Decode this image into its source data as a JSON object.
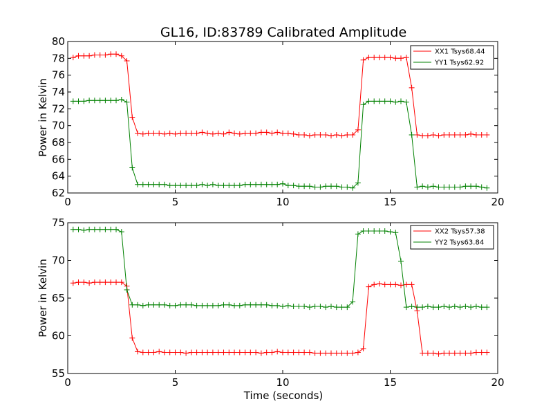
{
  "chart_data": [
    {
      "type": "line",
      "title": "GL16, ID:83789 Calibrated Amplitude",
      "xlabel": "",
      "ylabel": "Power in Kelvin",
      "xlim": [
        0,
        20
      ],
      "ylim": [
        62,
        80
      ],
      "xticks": [
        0,
        5,
        10,
        15,
        20
      ],
      "yticks": [
        62,
        64,
        66,
        68,
        70,
        72,
        74,
        76,
        78,
        80
      ],
      "grid": false,
      "legend_position": "top-right",
      "marker": "+",
      "x": [
        0.25,
        0.5,
        0.75,
        1.0,
        1.25,
        1.5,
        1.75,
        2.0,
        2.25,
        2.5,
        2.75,
        3.0,
        3.25,
        3.5,
        3.75,
        4.0,
        4.25,
        4.5,
        4.75,
        5.0,
        5.25,
        5.5,
        5.75,
        6.0,
        6.25,
        6.5,
        6.75,
        7.0,
        7.25,
        7.5,
        7.75,
        8.0,
        8.25,
        8.5,
        8.75,
        9.0,
        9.25,
        9.5,
        9.75,
        10.0,
        10.25,
        10.5,
        10.75,
        11.0,
        11.25,
        11.5,
        11.75,
        12.0,
        12.25,
        12.5,
        12.75,
        13.0,
        13.25,
        13.5,
        13.75,
        14.0,
        14.25,
        14.5,
        14.75,
        15.0,
        15.25,
        15.5,
        15.75,
        16.0,
        16.25,
        16.5,
        16.75,
        17.0,
        17.25,
        17.5,
        17.75,
        18.0,
        18.25,
        18.5,
        18.75,
        19.0,
        19.25,
        19.5
      ],
      "series": [
        {
          "name": "XX1 Tsys68.44",
          "color": "#ff0000",
          "values": [
            78.1,
            78.3,
            78.3,
            78.3,
            78.4,
            78.4,
            78.4,
            78.5,
            78.5,
            78.3,
            77.7,
            71.0,
            69.1,
            69.0,
            69.1,
            69.1,
            69.1,
            69.0,
            69.1,
            69.0,
            69.1,
            69.1,
            69.1,
            69.1,
            69.2,
            69.1,
            69.0,
            69.1,
            69.0,
            69.2,
            69.1,
            69.0,
            69.1,
            69.1,
            69.1,
            69.2,
            69.2,
            69.1,
            69.2,
            69.1,
            69.1,
            69.0,
            68.9,
            68.9,
            68.8,
            68.9,
            68.9,
            68.9,
            68.8,
            68.9,
            68.8,
            68.9,
            68.9,
            69.5,
            77.8,
            78.1,
            78.1,
            78.1,
            78.1,
            78.1,
            78.0,
            78.0,
            78.1,
            74.5,
            68.9,
            68.8,
            68.8,
            68.9,
            68.8,
            68.9,
            68.9,
            68.9,
            68.9,
            68.9,
            69.0,
            68.9,
            68.9,
            68.9
          ]
        },
        {
          "name": "YY1 Tsys62.92",
          "color": "#008000",
          "values": [
            72.9,
            72.9,
            72.9,
            73.0,
            73.0,
            73.0,
            73.0,
            73.0,
            73.0,
            73.1,
            72.8,
            65.0,
            63.0,
            63.0,
            63.0,
            63.0,
            63.0,
            63.0,
            62.9,
            62.9,
            62.9,
            62.9,
            62.9,
            62.9,
            63.0,
            62.9,
            63.0,
            62.9,
            62.9,
            62.9,
            62.9,
            62.9,
            63.0,
            63.0,
            63.0,
            63.0,
            63.0,
            63.0,
            63.0,
            63.1,
            62.9,
            62.9,
            62.8,
            62.8,
            62.8,
            62.7,
            62.7,
            62.8,
            62.8,
            62.8,
            62.7,
            62.7,
            62.6,
            63.2,
            72.5,
            72.9,
            72.9,
            72.9,
            72.9,
            72.9,
            72.8,
            72.9,
            72.8,
            68.9,
            62.7,
            62.8,
            62.7,
            62.8,
            62.7,
            62.7,
            62.7,
            62.7,
            62.7,
            62.8,
            62.8,
            62.8,
            62.7,
            62.6
          ]
        }
      ]
    },
    {
      "type": "line",
      "title": "",
      "xlabel": "Time (seconds)",
      "ylabel": "Power in Kelvin",
      "xlim": [
        0,
        20
      ],
      "ylim": [
        55,
        75
      ],
      "xticks": [
        0,
        5,
        10,
        15,
        20
      ],
      "yticks": [
        55,
        60,
        65,
        70,
        75
      ],
      "grid": false,
      "legend_position": "top-right",
      "marker": "+",
      "x": [
        0.25,
        0.5,
        0.75,
        1.0,
        1.25,
        1.5,
        1.75,
        2.0,
        2.25,
        2.5,
        2.75,
        3.0,
        3.25,
        3.5,
        3.75,
        4.0,
        4.25,
        4.5,
        4.75,
        5.0,
        5.25,
        5.5,
        5.75,
        6.0,
        6.25,
        6.5,
        6.75,
        7.0,
        7.25,
        7.5,
        7.75,
        8.0,
        8.25,
        8.5,
        8.75,
        9.0,
        9.25,
        9.5,
        9.75,
        10.0,
        10.25,
        10.5,
        10.75,
        11.0,
        11.25,
        11.5,
        11.75,
        12.0,
        12.25,
        12.5,
        12.75,
        13.0,
        13.25,
        13.5,
        13.75,
        14.0,
        14.25,
        14.5,
        14.75,
        15.0,
        15.25,
        15.5,
        15.75,
        16.0,
        16.25,
        16.5,
        16.75,
        17.0,
        17.25,
        17.5,
        17.75,
        18.0,
        18.25,
        18.5,
        18.75,
        19.0,
        19.25,
        19.5
      ],
      "series": [
        {
          "name": "XX2 Tsys57.38",
          "color": "#ff0000",
          "values": [
            67.0,
            67.1,
            67.1,
            67.0,
            67.1,
            67.1,
            67.1,
            67.1,
            67.1,
            67.1,
            66.6,
            59.7,
            57.9,
            57.8,
            57.8,
            57.8,
            57.9,
            57.8,
            57.8,
            57.8,
            57.8,
            57.7,
            57.8,
            57.8,
            57.8,
            57.8,
            57.8,
            57.8,
            57.8,
            57.8,
            57.8,
            57.8,
            57.8,
            57.8,
            57.8,
            57.7,
            57.8,
            57.8,
            57.9,
            57.8,
            57.8,
            57.8,
            57.8,
            57.8,
            57.8,
            57.7,
            57.7,
            57.7,
            57.7,
            57.7,
            57.7,
            57.7,
            57.7,
            57.8,
            58.3,
            66.5,
            66.8,
            66.9,
            66.8,
            66.8,
            66.8,
            66.7,
            66.8,
            66.8,
            63.3,
            57.7,
            57.7,
            57.7,
            57.6,
            57.7,
            57.7,
            57.7,
            57.7,
            57.7,
            57.7,
            57.8,
            57.8,
            57.8
          ]
        },
        {
          "name": "YY2 Tsys63.84",
          "color": "#008000",
          "values": [
            74.1,
            74.1,
            74.0,
            74.1,
            74.1,
            74.1,
            74.1,
            74.1,
            74.1,
            73.8,
            66.1,
            64.1,
            64.1,
            64.0,
            64.1,
            64.1,
            64.1,
            64.1,
            64.0,
            64.0,
            64.1,
            64.1,
            64.1,
            64.0,
            64.0,
            64.0,
            64.0,
            64.0,
            64.1,
            64.1,
            64.0,
            64.0,
            64.1,
            64.1,
            64.1,
            64.1,
            64.1,
            64.0,
            64.0,
            63.9,
            64.0,
            63.9,
            63.9,
            63.9,
            63.8,
            63.9,
            63.9,
            63.8,
            63.9,
            63.8,
            63.8,
            63.8,
            64.5,
            73.5,
            73.9,
            73.9,
            73.9,
            73.9,
            73.9,
            73.8,
            73.7,
            69.9,
            63.8,
            63.9,
            63.8,
            63.8,
            63.9,
            63.8,
            63.8,
            63.9,
            63.8,
            63.9,
            63.8,
            63.9,
            63.8,
            63.9,
            63.8,
            63.8
          ]
        }
      ]
    }
  ]
}
